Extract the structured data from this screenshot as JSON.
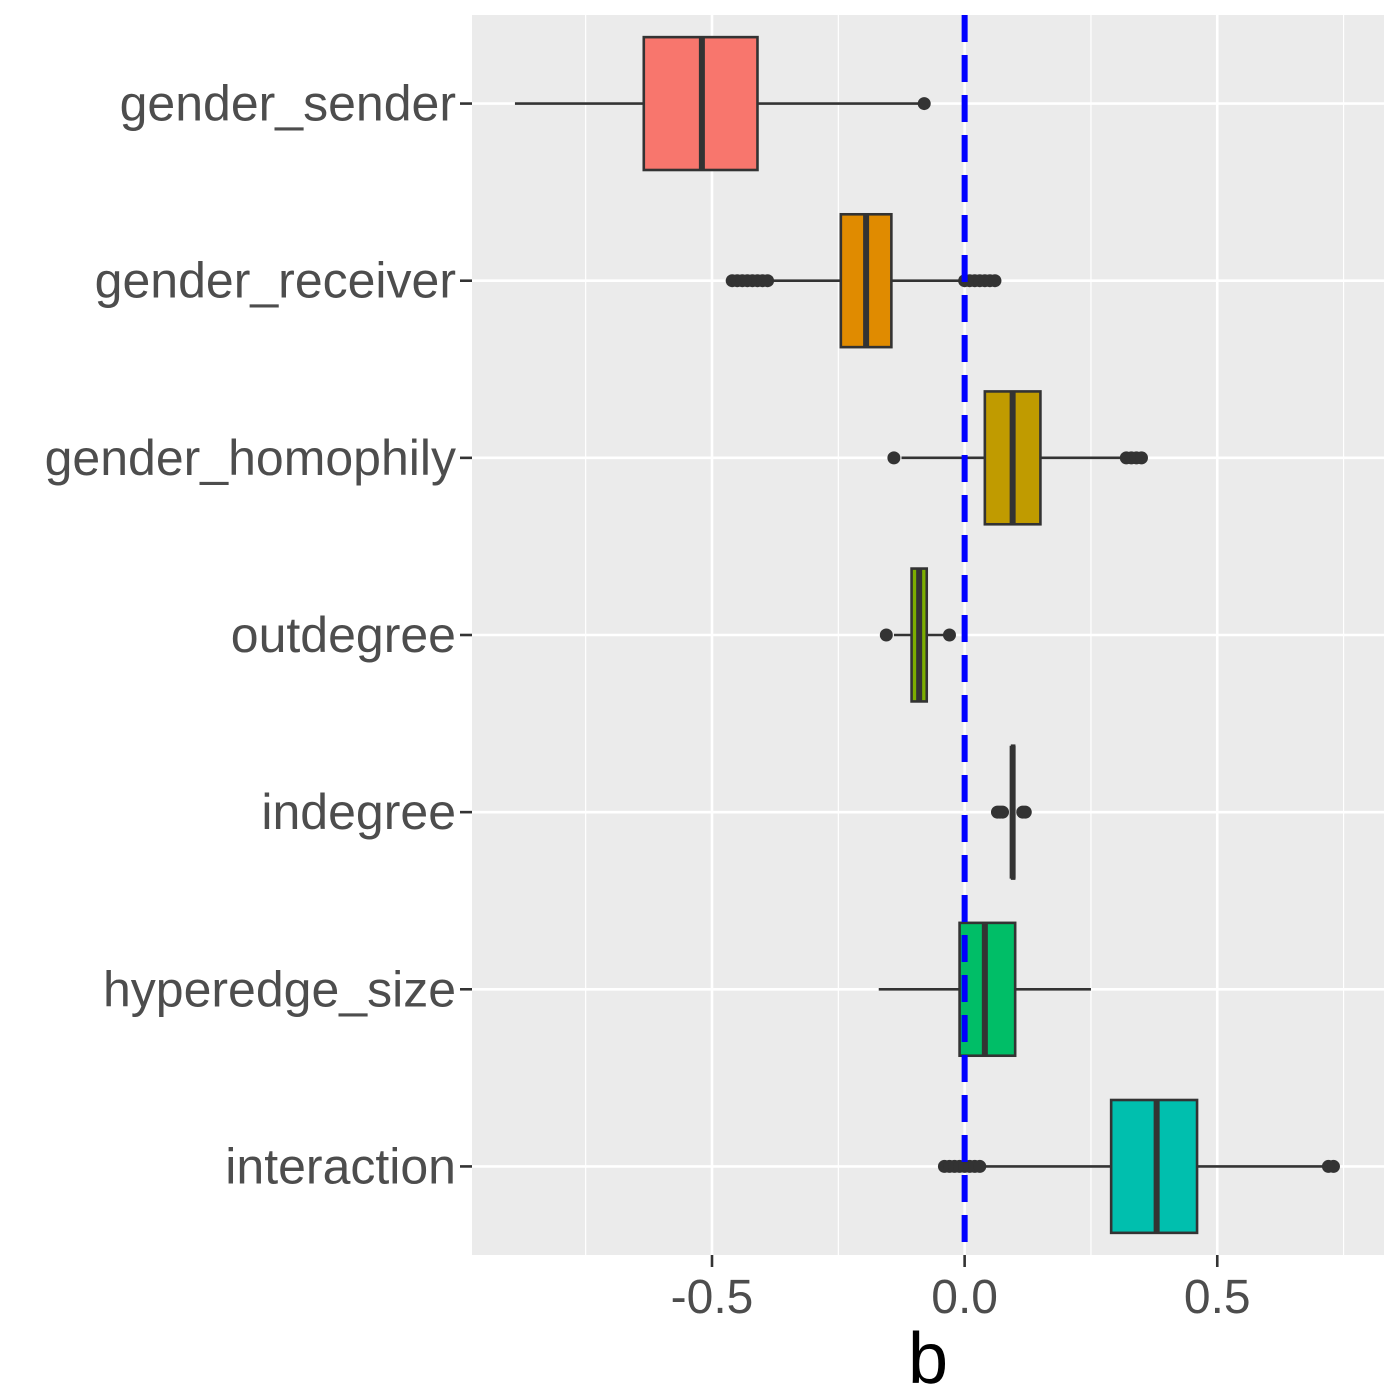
{
  "chart_data": {
    "type": "boxplot",
    "orientation": "horizontal",
    "title": "",
    "xlabel": "b",
    "ylabel": "",
    "xlim": [
      -0.975,
      0.83
    ],
    "x_ticks": [
      -0.5,
      0.0,
      0.5
    ],
    "x_tick_labels": [
      "-0.5",
      "0.0",
      "0.5"
    ],
    "reference_line": {
      "x": 0.0,
      "color": "#0000FF",
      "style": "dashed"
    },
    "grid": true,
    "panel_background": "#EBEBEB",
    "categories": [
      "gender_sender",
      "gender_receiver",
      "gender_homophily",
      "outdegree",
      "indegree",
      "hyperedge_size",
      "interaction"
    ],
    "series": [
      {
        "name": "gender_sender",
        "color": "#F8766D",
        "whisker_low": -0.89,
        "q1": -0.635,
        "median": -0.52,
        "q3": -0.41,
        "whisker_high": -0.09,
        "outliers": [
          -0.08
        ]
      },
      {
        "name": "gender_receiver",
        "color": "#E08B00",
        "whisker_low": -0.38,
        "q1": -0.245,
        "median": -0.195,
        "q3": -0.145,
        "whisker_high": 0.0,
        "outliers": [
          -0.46,
          -0.45,
          -0.44,
          -0.43,
          -0.42,
          -0.41,
          -0.4,
          -0.39,
          0.0,
          0.01,
          0.02,
          0.03,
          0.04,
          0.05,
          0.06
        ]
      },
      {
        "name": "gender_homophily",
        "color": "#C09B00",
        "whisker_low": -0.125,
        "q1": 0.04,
        "median": 0.095,
        "q3": 0.15,
        "whisker_high": 0.315,
        "outliers": [
          -0.14,
          0.32,
          0.33,
          0.34,
          0.35
        ]
      },
      {
        "name": "outdegree",
        "color": "#7CAE00",
        "whisker_low": -0.14,
        "q1": -0.105,
        "median": -0.09,
        "q3": -0.075,
        "whisker_high": -0.04,
        "outliers": [
          -0.155,
          -0.03
        ]
      },
      {
        "name": "indegree",
        "color": "#333333",
        "whisker_low": 0.09,
        "q1": 0.094,
        "median": 0.095,
        "q3": 0.096,
        "whisker_high": 0.1,
        "outliers": [
          0.065,
          0.07,
          0.075,
          0.115,
          0.12
        ]
      },
      {
        "name": "hyperedge_size",
        "color": "#00BE67",
        "whisker_low": -0.17,
        "q1": -0.01,
        "median": 0.04,
        "q3": 0.1,
        "whisker_high": 0.25,
        "outliers": []
      },
      {
        "name": "interaction",
        "color": "#00BFAE",
        "whisker_low": 0.04,
        "q1": 0.29,
        "median": 0.38,
        "q3": 0.46,
        "whisker_high": 0.71,
        "outliers": [
          -0.04,
          -0.03,
          -0.02,
          -0.01,
          0.0,
          0.01,
          0.02,
          0.03,
          0.72,
          0.73
        ]
      }
    ]
  }
}
